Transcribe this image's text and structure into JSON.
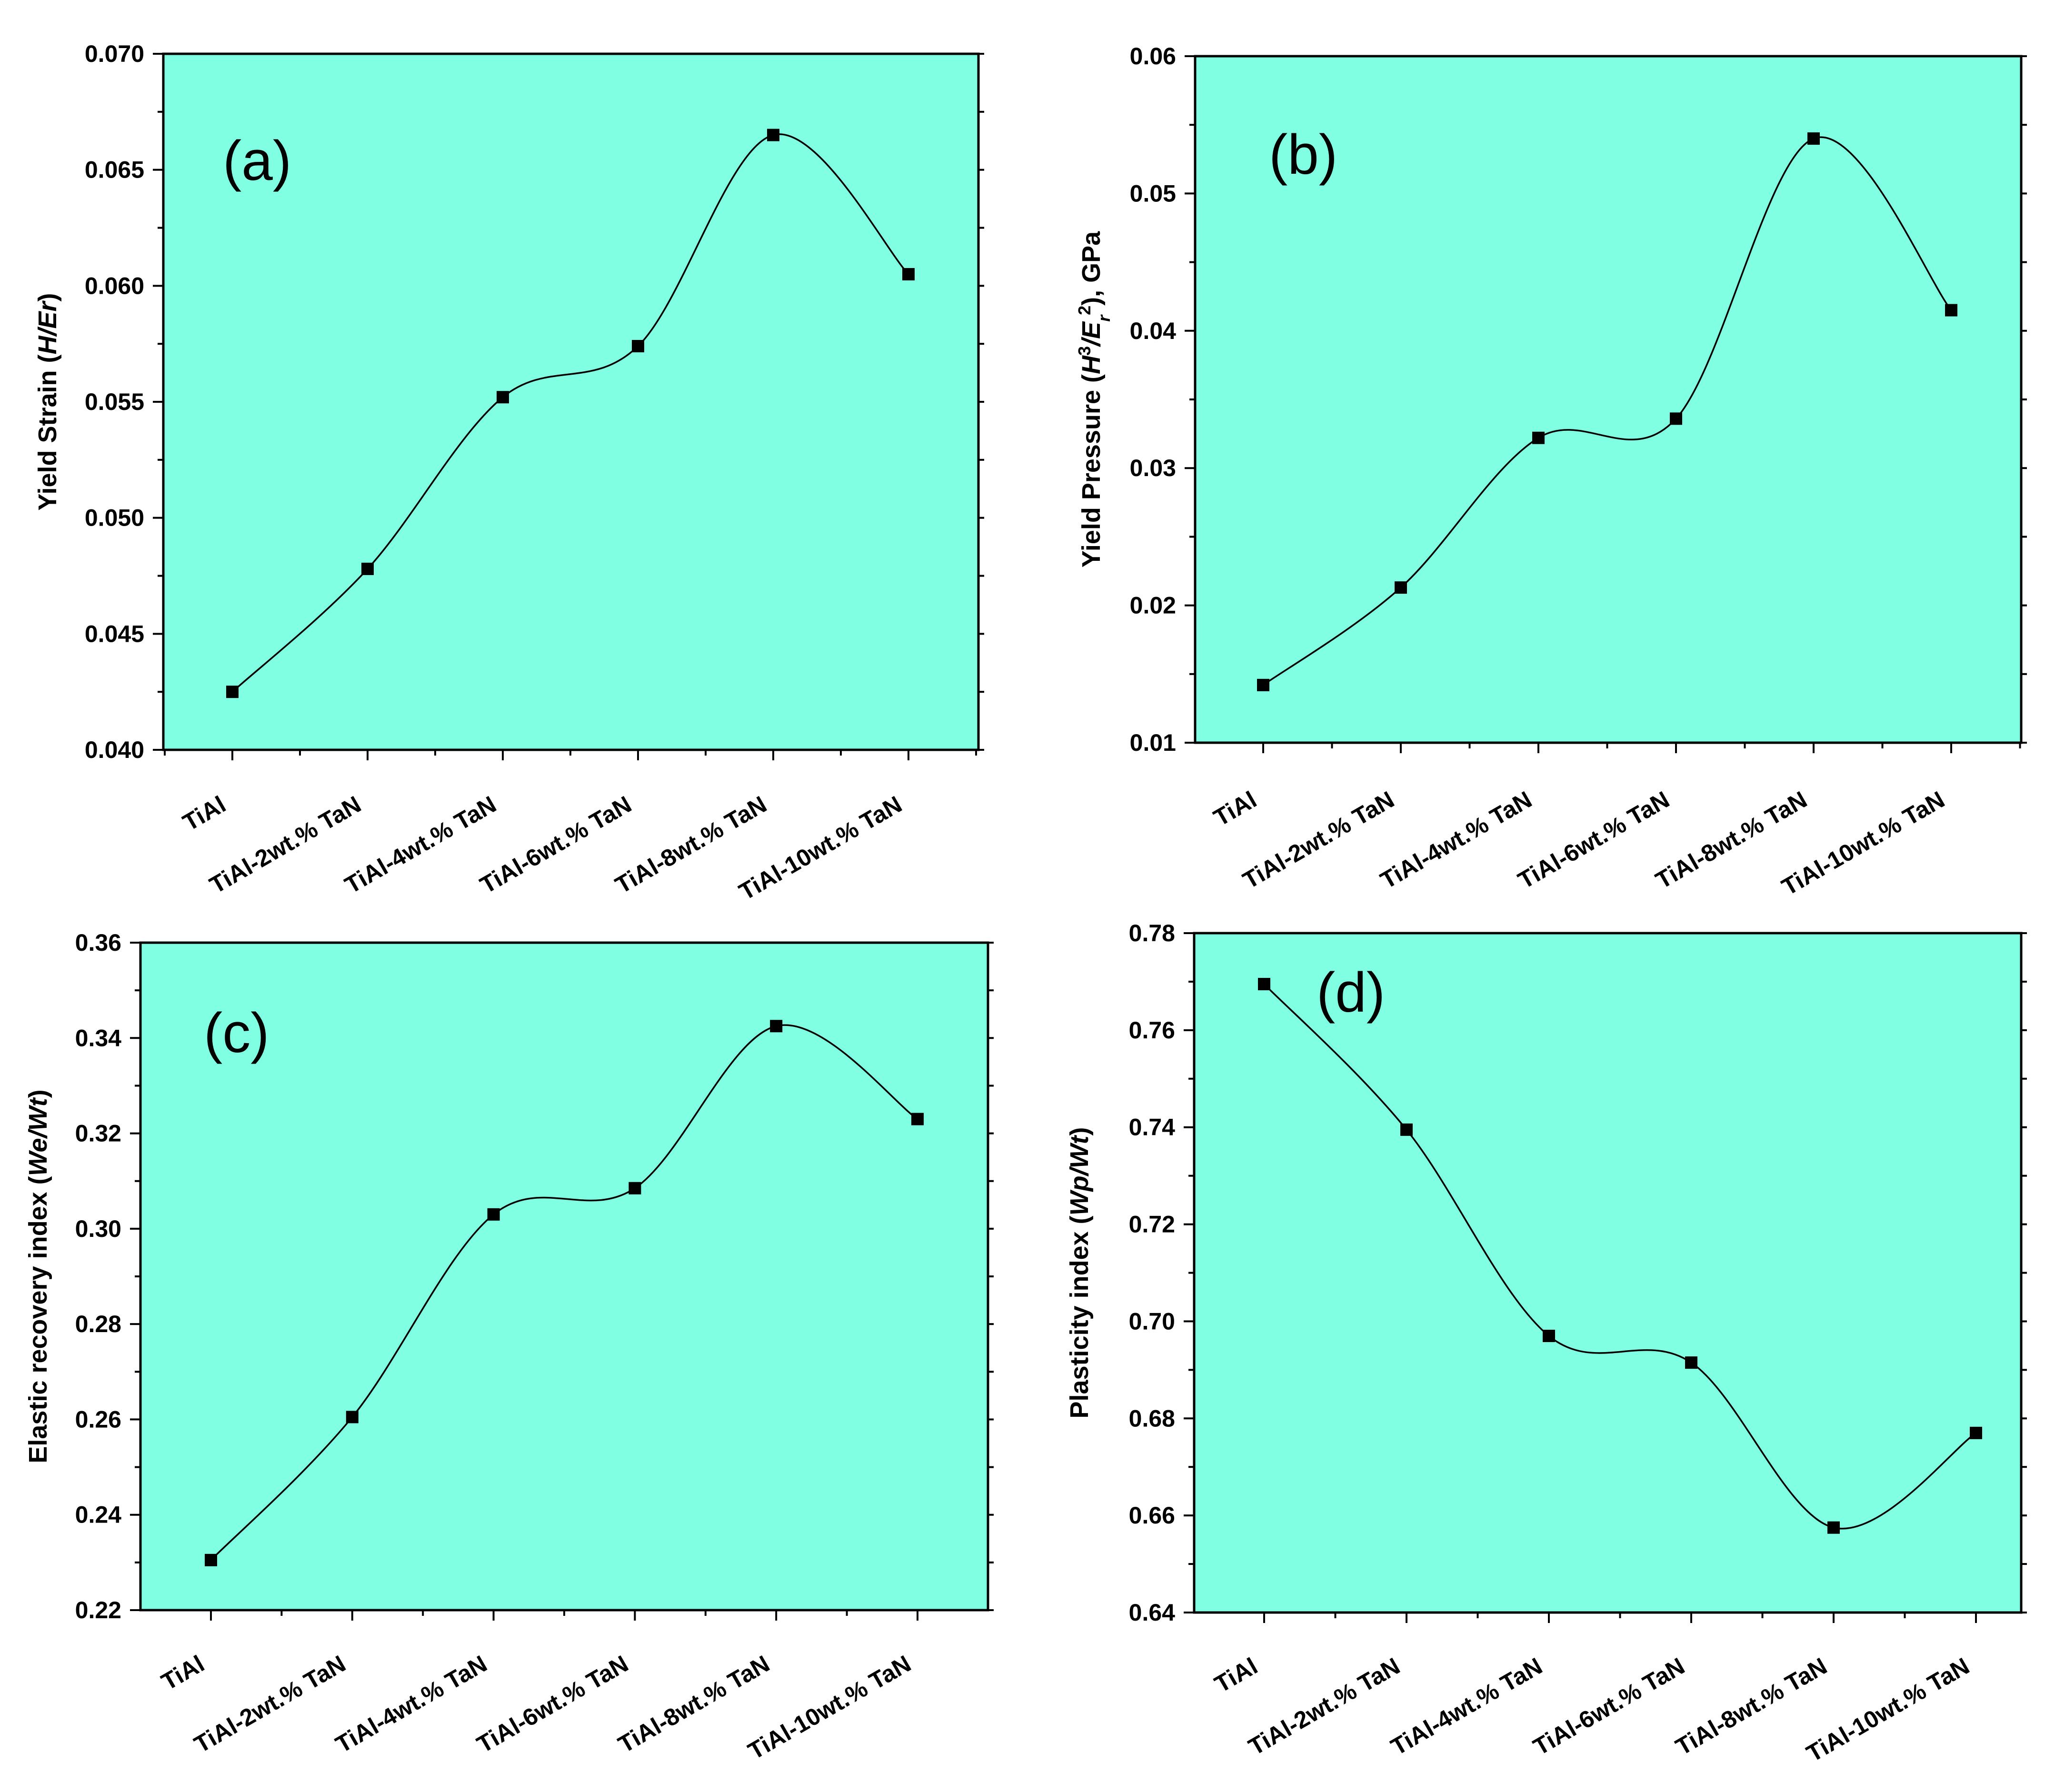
{
  "chart_data": [
    {
      "type": "line",
      "panel_label": "(a)",
      "categories": [
        "TiAl",
        "TiAl-2wt.% TaN",
        "TiAl-4wt.% TaN",
        "TiAl-6wt.% TaN",
        "TiAl-8wt.% TaN",
        "TiAl-10wt.% TaN"
      ],
      "values": [
        0.0425,
        0.0478,
        0.0552,
        0.0574,
        0.0665,
        0.0605
      ],
      "ylabel_parts": [
        {
          "text": "Yield Strain (",
          "italic": false
        },
        {
          "text": "H/Er",
          "italic": true
        },
        {
          "text": ")",
          "italic": false
        }
      ],
      "xlabel": "",
      "ylim": [
        0.04,
        0.07
      ],
      "yticks": [
        "0.040",
        "0.045",
        "0.050",
        "0.055",
        "0.060",
        "0.065",
        "0.070"
      ],
      "curve": "spline",
      "marker": "square",
      "grid": false
    },
    {
      "type": "line",
      "panel_label": "(b)",
      "categories": [
        "TiAl",
        "TiAl-2wt.% TaN",
        "TiAl-4wt.% TaN",
        "TiAl-6wt.% TaN",
        "TiAl-8wt.% TaN",
        "TiAl-10wt.% TaN"
      ],
      "values": [
        0.0142,
        0.0213,
        0.0322,
        0.0336,
        0.054,
        0.0415
      ],
      "ylabel_parts": [
        {
          "text": "Yield Pressure (",
          "italic": false
        },
        {
          "text": "H",
          "italic": true
        },
        {
          "text": "3",
          "italic": false,
          "sup": true
        },
        {
          "text": "/E",
          "italic": true
        },
        {
          "text": "r",
          "italic": true,
          "sub": true
        },
        {
          "text": "2",
          "italic": false,
          "sup": true
        },
        {
          "text": "), GPa",
          "italic": false
        }
      ],
      "xlabel": "",
      "ylim": [
        0.01,
        0.06
      ],
      "yticks": [
        "0.01",
        "0.02",
        "0.03",
        "0.04",
        "0.05",
        "0.06"
      ],
      "curve": "spline",
      "marker": "square",
      "grid": false
    },
    {
      "type": "line",
      "panel_label": "(c)",
      "categories": [
        "TiAl",
        "TiAl-2wt.% TaN",
        "TiAl-4wt.% TaN",
        "TiAl-6wt.% TaN",
        "TiAl-8wt.% TaN",
        "TiAl-10wt.% TaN"
      ],
      "values": [
        0.2305,
        0.2605,
        0.303,
        0.3085,
        0.3425,
        0.323
      ],
      "ylabel_parts": [
        {
          "text": "Elastic recovery index (",
          "italic": false
        },
        {
          "text": "We/Wt",
          "italic": true
        },
        {
          "text": ")",
          "italic": false
        }
      ],
      "xlabel": "",
      "ylim": [
        0.22,
        0.36
      ],
      "yticks": [
        "0.22",
        "0.24",
        "0.26",
        "0.28",
        "0.30",
        "0.32",
        "0.34",
        "0.36"
      ],
      "curve": "spline",
      "marker": "square",
      "grid": false
    },
    {
      "type": "line",
      "panel_label": "(d)",
      "categories": [
        "TiAl",
        "TiAl-2wt.% TaN",
        "TiAl-4wt.% TaN",
        "TiAl-6wt.% TaN",
        "TiAl-8wt.% TaN",
        "TiAl-10wt.% TaN"
      ],
      "values": [
        0.7695,
        0.7395,
        0.697,
        0.6915,
        0.6575,
        0.677
      ],
      "ylabel_parts": [
        {
          "text": "Plasticity index (",
          "italic": false
        },
        {
          "text": "Wp/Wt",
          "italic": true
        },
        {
          "text": ")",
          "italic": false
        }
      ],
      "xlabel": "",
      "ylim": [
        0.64,
        0.78
      ],
      "yticks": [
        "0.64",
        "0.66",
        "0.68",
        "0.70",
        "0.72",
        "0.74",
        "0.76",
        "0.78"
      ],
      "curve": "spline",
      "marker": "square",
      "grid": false
    }
  ],
  "colors": {
    "plot_background": "#80FFE3",
    "line": "#000000",
    "marker": "#000000"
  }
}
